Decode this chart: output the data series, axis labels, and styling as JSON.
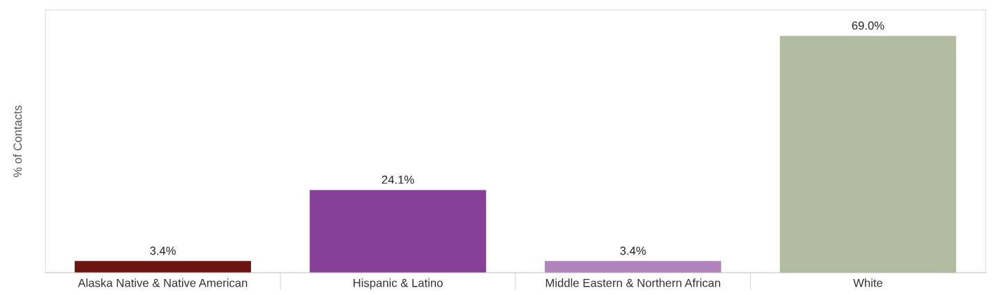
{
  "chart_data": {
    "type": "bar",
    "ylabel": "% of Contacts",
    "categories": [
      "Alaska Native & Native American",
      "Hispanic & Latino",
      "Middle Eastern & Northern African",
      "White"
    ],
    "values": [
      3.4,
      24.1,
      3.4,
      69.0
    ],
    "colors": [
      "#6b1410",
      "#864097",
      "#b283bb",
      "#b3bca0"
    ],
    "value_labels": [
      "3.4%",
      "24.1%",
      "3.4%",
      "69.0%"
    ],
    "grid": false,
    "legend": false
  }
}
